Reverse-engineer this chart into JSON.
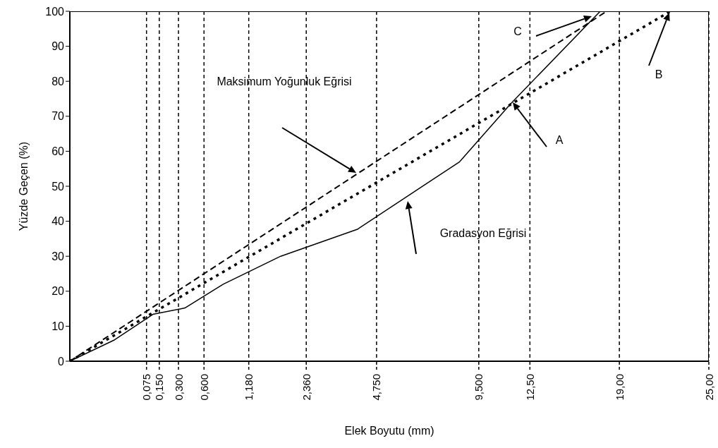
{
  "chart_data": {
    "type": "line",
    "xlabel": "Elek Boyutu (mm)",
    "ylabel": "Yüzde Geçen (%)",
    "categories": [
      null,
      null,
      null,
      null,
      null,
      null,
      null,
      null,
      null,
      null,
      null,
      null,
      "0,075",
      null,
      "0,150",
      null,
      null,
      "0,300",
      null,
      null,
      null,
      "0,600",
      null,
      null,
      null,
      null,
      null,
      null,
      "1,180",
      null,
      null,
      null,
      null,
      null,
      null,
      null,
      null,
      "2,360",
      null,
      null,
      null,
      null,
      null,
      null,
      null,
      null,
      null,
      null,
      "4,750",
      null,
      null,
      null,
      null,
      null,
      null,
      null,
      null,
      null,
      null,
      null,
      null,
      null,
      null,
      null,
      "9,500",
      null,
      null,
      null,
      null,
      null,
      null,
      null,
      "12,50",
      null,
      null,
      null,
      null,
      null,
      null,
      null,
      null,
      null,
      null,
      null,
      null,
      null,
      "19,00",
      null,
      null,
      null,
      null,
      null,
      null,
      null,
      null,
      null,
      null,
      null,
      null,
      null,
      "25,00"
    ],
    "ylim": [
      0,
      100
    ],
    "yticks": [
      0,
      10,
      20,
      30,
      40,
      50,
      60,
      70,
      80,
      90,
      100
    ],
    "grid": "x",
    "series": [
      {
        "color": "#000000",
        "line_style": "solid",
        "values": [
          0,
          null,
          null,
          null,
          null,
          null,
          null,
          6.1,
          null,
          null,
          null,
          null,
          null,
          13.4,
          null,
          null,
          null,
          null,
          15.2,
          null,
          null,
          null,
          null,
          null,
          22.0,
          null,
          null,
          null,
          null,
          null,
          null,
          null,
          null,
          30.0,
          null,
          null,
          null,
          null,
          null,
          null,
          null,
          null,
          null,
          null,
          null,
          37.7,
          null,
          null,
          null,
          null,
          null,
          null,
          null,
          null,
          null,
          null,
          null,
          null,
          null,
          null,
          null,
          57.0,
          null,
          null,
          null,
          null,
          null,
          null,
          null,
          73.6,
          null,
          null,
          null,
          null,
          null,
          null,
          null,
          null,
          null,
          null,
          null,
          null,
          null,
          100,
          null,
          null,
          null,
          null,
          null,
          null,
          null,
          null,
          null,
          null,
          null,
          null,
          null,
          null,
          null,
          null,
          null
        ]
      },
      {
        "color": "#000000",
        "line_style": "dashed",
        "values": [
          0,
          null,
          null,
          null,
          null,
          null,
          null,
          null,
          null,
          null,
          null,
          null,
          null,
          null,
          null,
          null,
          null,
          null,
          null,
          null,
          null,
          null,
          null,
          null,
          null,
          null,
          null,
          null,
          null,
          null,
          null,
          null,
          null,
          null,
          null,
          null,
          null,
          null,
          null,
          null,
          null,
          null,
          null,
          null,
          null,
          null,
          null,
          null,
          null,
          null,
          null,
          null,
          null,
          null,
          null,
          null,
          null,
          null,
          null,
          null,
          null,
          null,
          null,
          null,
          null,
          null,
          null,
          null,
          null,
          null,
          null,
          null,
          null,
          null,
          null,
          null,
          null,
          null,
          null,
          null,
          null,
          null,
          null,
          null,
          100,
          null,
          null,
          null,
          null,
          null,
          null,
          null,
          null,
          null,
          null,
          null,
          null,
          null,
          null,
          null,
          null
        ]
      },
      {
        "color": "#000000",
        "line_style": "dotted",
        "values": [
          0,
          null,
          null,
          null,
          null,
          null,
          null,
          null,
          null,
          null,
          null,
          null,
          null,
          null,
          null,
          null,
          null,
          null,
          null,
          null,
          null,
          null,
          null,
          null,
          null,
          null,
          null,
          null,
          null,
          null,
          null,
          null,
          null,
          null,
          null,
          null,
          null,
          null,
          null,
          null,
          null,
          null,
          null,
          null,
          null,
          null,
          null,
          null,
          null,
          null,
          null,
          null,
          null,
          null,
          null,
          null,
          null,
          null,
          null,
          null,
          null,
          null,
          null,
          null,
          null,
          null,
          null,
          null,
          null,
          null,
          null,
          null,
          null,
          null,
          null,
          null,
          null,
          null,
          null,
          null,
          null,
          null,
          null,
          null,
          null,
          null,
          null,
          null,
          null,
          null,
          null,
          null,
          null,
          null,
          100,
          null,
          null,
          null,
          null,
          null,
          null
        ]
      }
    ],
    "annotations": [
      "Maksimum Yoğunluk Eğrisi",
      "Gradasyon Eğrisi",
      "A",
      "B",
      "C"
    ]
  }
}
